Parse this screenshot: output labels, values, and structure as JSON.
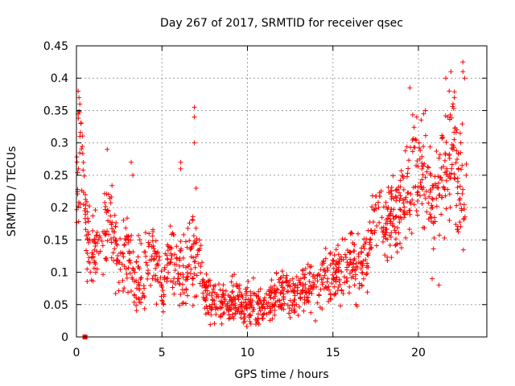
{
  "chart_data": {
    "type": "scatter",
    "title": "Day 267 of 2017, SRMTID for receiver qsec",
    "xlabel": "GPS time / hours",
    "ylabel": "SRMTID / TECUs",
    "xlim": [
      0,
      24
    ],
    "ylim": [
      0,
      0.45
    ],
    "xticks": [
      "0",
      "5",
      "10",
      "15",
      "20"
    ],
    "xtick_values": [
      0,
      5,
      10,
      15,
      20
    ],
    "yticks": [
      "0",
      "0.05",
      "0.1",
      "0.15",
      "0.2",
      "0.25",
      "0.3",
      "0.35",
      "0.4",
      "0.45"
    ],
    "ytick_values": [
      0,
      0.05,
      0.1,
      0.15,
      0.2,
      0.25,
      0.3,
      0.35,
      0.4,
      0.45
    ],
    "grid": true,
    "marker": "+",
    "color": "#ff0000",
    "series": [
      {
        "name": "SRMTID",
        "points_note": "estimated binned representation of dense scatter; [hour, TECU]",
        "profile": [
          [
            0.0,
            0.25,
            0.09
          ],
          [
            0.3,
            0.3,
            0.08
          ],
          [
            0.6,
            0.15,
            0.05
          ],
          [
            1.0,
            0.12,
            0.05
          ],
          [
            1.5,
            0.17,
            0.05
          ],
          [
            2.0,
            0.18,
            0.06
          ],
          [
            2.5,
            0.12,
            0.05
          ],
          [
            3.0,
            0.14,
            0.06
          ],
          [
            3.5,
            0.09,
            0.04
          ],
          [
            4.0,
            0.11,
            0.05
          ],
          [
            4.5,
            0.13,
            0.05
          ],
          [
            5.0,
            0.07,
            0.04
          ],
          [
            5.5,
            0.13,
            0.05
          ],
          [
            6.0,
            0.1,
            0.05
          ],
          [
            6.5,
            0.1,
            0.05
          ],
          [
            7.0,
            0.13,
            0.07
          ],
          [
            7.5,
            0.07,
            0.03
          ],
          [
            8.0,
            0.06,
            0.03
          ],
          [
            9.0,
            0.055,
            0.025
          ],
          [
            10.0,
            0.05,
            0.025
          ],
          [
            11.0,
            0.05,
            0.025
          ],
          [
            12.0,
            0.07,
            0.03
          ],
          [
            13.0,
            0.07,
            0.03
          ],
          [
            14.0,
            0.08,
            0.03
          ],
          [
            15.0,
            0.1,
            0.04
          ],
          [
            16.0,
            0.11,
            0.04
          ],
          [
            17.0,
            0.12,
            0.04
          ],
          [
            17.5,
            0.2,
            0.05
          ],
          [
            18.0,
            0.17,
            0.05
          ],
          [
            19.0,
            0.2,
            0.06
          ],
          [
            19.5,
            0.24,
            0.07
          ],
          [
            20.0,
            0.27,
            0.07
          ],
          [
            21.0,
            0.2,
            0.08
          ],
          [
            21.5,
            0.27,
            0.09
          ],
          [
            22.0,
            0.28,
            0.09
          ],
          [
            22.5,
            0.25,
            0.09
          ],
          [
            22.8,
            0.2,
            0.08
          ]
        ],
        "outliers": [
          [
            0.1,
            0.38
          ],
          [
            0.15,
            0.37
          ],
          [
            0.2,
            0.36
          ],
          [
            0.2,
            0.31
          ],
          [
            0.25,
            0.33
          ],
          [
            1.8,
            0.29
          ],
          [
            3.2,
            0.27
          ],
          [
            3.3,
            0.25
          ],
          [
            6.1,
            0.27
          ],
          [
            6.1,
            0.26
          ],
          [
            6.9,
            0.355
          ],
          [
            6.9,
            0.34
          ],
          [
            6.9,
            0.3
          ],
          [
            7.0,
            0.23
          ],
          [
            19.5,
            0.385
          ],
          [
            19.9,
            0.34
          ],
          [
            20.3,
            0.345
          ],
          [
            20.4,
            0.35
          ],
          [
            21.6,
            0.4
          ],
          [
            21.9,
            0.41
          ],
          [
            22.6,
            0.425
          ],
          [
            22.6,
            0.41
          ],
          [
            22.7,
            0.4
          ],
          [
            21.8,
            0.38
          ],
          [
            22.1,
            0.37
          ],
          [
            20.8,
            0.09
          ],
          [
            21.2,
            0.08
          ],
          [
            8.5,
            0.02
          ],
          [
            10.2,
            0.02
          ],
          [
            12.5,
            0.03
          ]
        ],
        "sample_count": 1400,
        "special_point": [
          0.5,
          0.0
        ]
      }
    ]
  }
}
